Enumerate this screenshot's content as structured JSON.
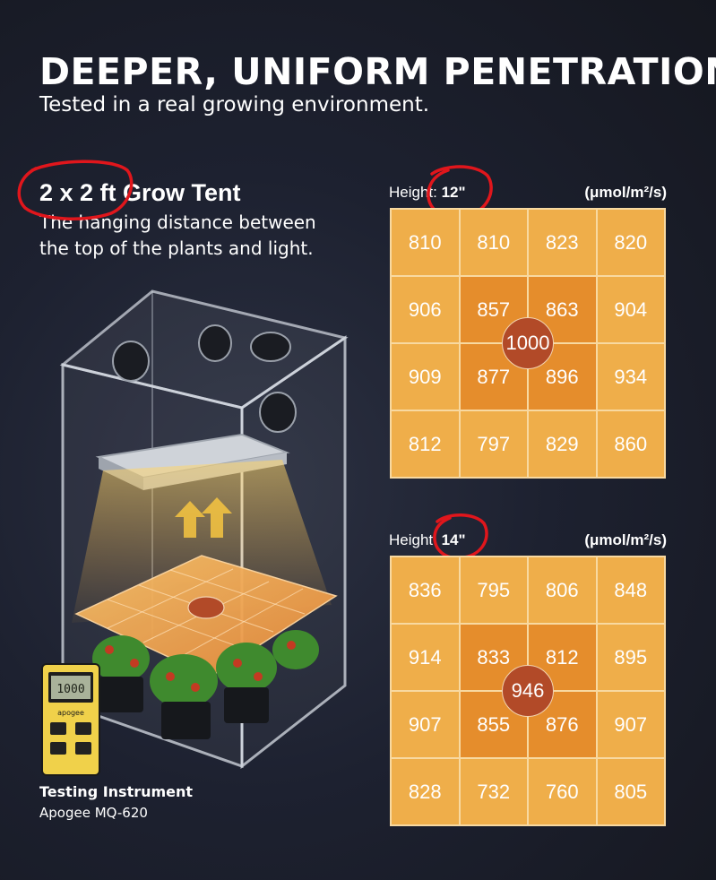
{
  "header": {
    "title": "DEEPER, UNIFORM PENETRATION",
    "subtitle": "Tested in a real growing environment."
  },
  "tent": {
    "heading": "2 x 2 ft Grow Tent",
    "description": "The hanging distance between the top of the plants and light."
  },
  "grids": [
    {
      "height_label": "Height: ",
      "height_value": "12\"",
      "unit": "(μmol/m²/s)",
      "center_value": "1000",
      "rows": [
        [
          "810",
          "810",
          "823",
          "820"
        ],
        [
          "906",
          "857",
          "863",
          "904"
        ],
        [
          "909",
          "877",
          "896",
          "934"
        ],
        [
          "812",
          "797",
          "829",
          "860"
        ]
      ]
    },
    {
      "height_label": "Height: ",
      "height_value": "14\"",
      "unit": "(μmol/m²/s)",
      "center_value": "946",
      "rows": [
        [
          "836",
          "795",
          "806",
          "848"
        ],
        [
          "914",
          "833",
          "812",
          "895"
        ],
        [
          "907",
          "855",
          "876",
          "907"
        ],
        [
          "828",
          "732",
          "760",
          "805"
        ]
      ]
    }
  ],
  "instrument": {
    "title": "Testing Instrument",
    "model": "Apogee MQ-620",
    "meter_reading": "1000",
    "meter_brand": "apogee"
  },
  "colors": {
    "edge_cell": "#efae4a",
    "center_cell": "#e58d2c",
    "center_badge": "#b24a28",
    "annotation_ring": "#e0161c",
    "background": "#1d2130"
  }
}
